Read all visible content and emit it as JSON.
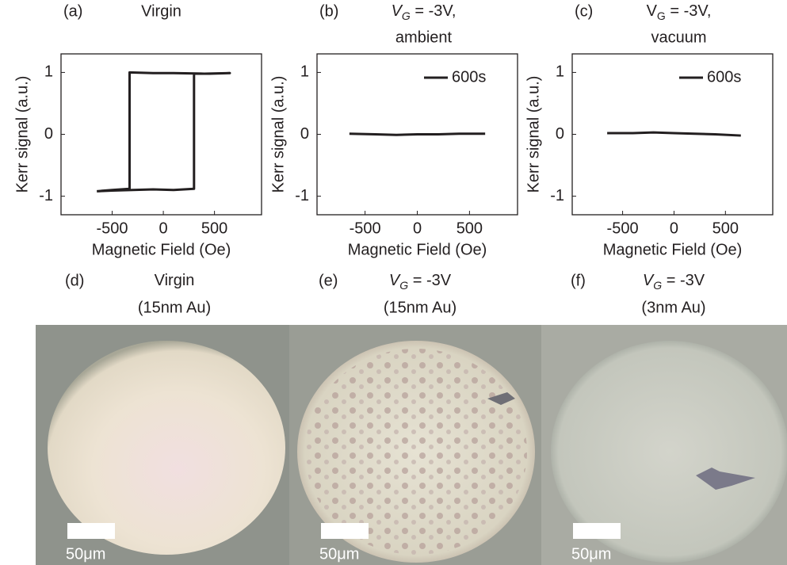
{
  "chart_data": [
    {
      "type": "line",
      "label": "(a)",
      "title": "Virgin",
      "xlabel": "Magnetic Field (Oe)",
      "ylabel": "Kerr signal (a.u.)",
      "xlim": [
        -1000,
        960
      ],
      "ylim": [
        -1.3,
        1.3
      ],
      "xticks": [
        -500,
        0,
        500
      ],
      "yticks": [
        -1,
        0,
        1
      ],
      "series": [
        {
          "color": "#231f20",
          "x": [
            -650,
            -500,
            -300,
            -100,
            100,
            300,
            300,
            450,
            650,
            400,
            100,
            -100,
            -330,
            -330,
            -500,
            -650
          ],
          "values": [
            -0.92,
            -0.91,
            -0.9,
            -0.89,
            -0.9,
            -0.88,
            0.98,
            0.98,
            0.99,
            0.98,
            0.99,
            0.99,
            1.0,
            -0.88,
            -0.9,
            -0.92
          ]
        }
      ]
    },
    {
      "type": "line",
      "label": "(b)",
      "title": [
        {
          "text": "V",
          "style": "italic"
        },
        {
          "text": "G",
          "style": "sub-italic"
        },
        {
          "text": " = -3V,",
          "style": "normal"
        }
      ],
      "subtitle": "ambient",
      "xlabel": "Magnetic Field (Oe)",
      "ylabel": "Kerr signal (a.u.)",
      "xlim": [
        -960,
        960
      ],
      "ylim": [
        -1.3,
        1.3
      ],
      "xticks": [
        -500,
        0,
        500
      ],
      "yticks": [
        -1,
        0,
        1
      ],
      "legend": "upper right",
      "series": [
        {
          "name": "600s",
          "color": "#231f20",
          "x": [
            -650,
            -400,
            -200,
            0,
            200,
            400,
            650
          ],
          "values": [
            0.01,
            0.0,
            -0.01,
            0.0,
            0.0,
            0.01,
            0.01
          ]
        }
      ]
    },
    {
      "type": "line",
      "label": "(c)",
      "title": [
        {
          "text": "V",
          "style": "normal"
        },
        {
          "text": "G",
          "style": "sub"
        },
        {
          "text": " = -3V,",
          "style": "normal"
        }
      ],
      "subtitle": "vacuum",
      "xlabel": "Magnetic Field (Oe)",
      "ylabel": "Kerr signal (a.u.)",
      "xlim": [
        -990,
        960
      ],
      "ylim": [
        -1.3,
        1.3
      ],
      "xticks": [
        -500,
        0,
        500
      ],
      "yticks": [
        -1,
        0,
        1
      ],
      "legend": "upper right",
      "series": [
        {
          "name": "600s",
          "color": "#231f20",
          "x": [
            -650,
            -400,
            -200,
            0,
            200,
            400,
            650
          ],
          "values": [
            0.02,
            0.02,
            0.03,
            0.02,
            0.01,
            0.0,
            -0.02
          ]
        }
      ]
    }
  ],
  "images": [
    {
      "label": "(d)",
      "title": [
        {
          "text": "Virgin",
          "style": "normal"
        }
      ],
      "subtitle": "(15nm Au)",
      "scale_bar": "50μm"
    },
    {
      "label": "(e)",
      "title": [
        {
          "text": "V",
          "style": "italic"
        },
        {
          "text": "G",
          "style": "sub-italic"
        },
        {
          "text": " = -3V",
          "style": "normal"
        }
      ],
      "subtitle": "(15nm Au)",
      "scale_bar": "50μm"
    },
    {
      "label": "(f)",
      "title": [
        {
          "text": "V",
          "style": "italic"
        },
        {
          "text": "G",
          "style": "sub-italic"
        },
        {
          "text": " = -3V",
          "style": "normal"
        }
      ],
      "subtitle": "(3nm Au)",
      "scale_bar": "50μm"
    }
  ]
}
